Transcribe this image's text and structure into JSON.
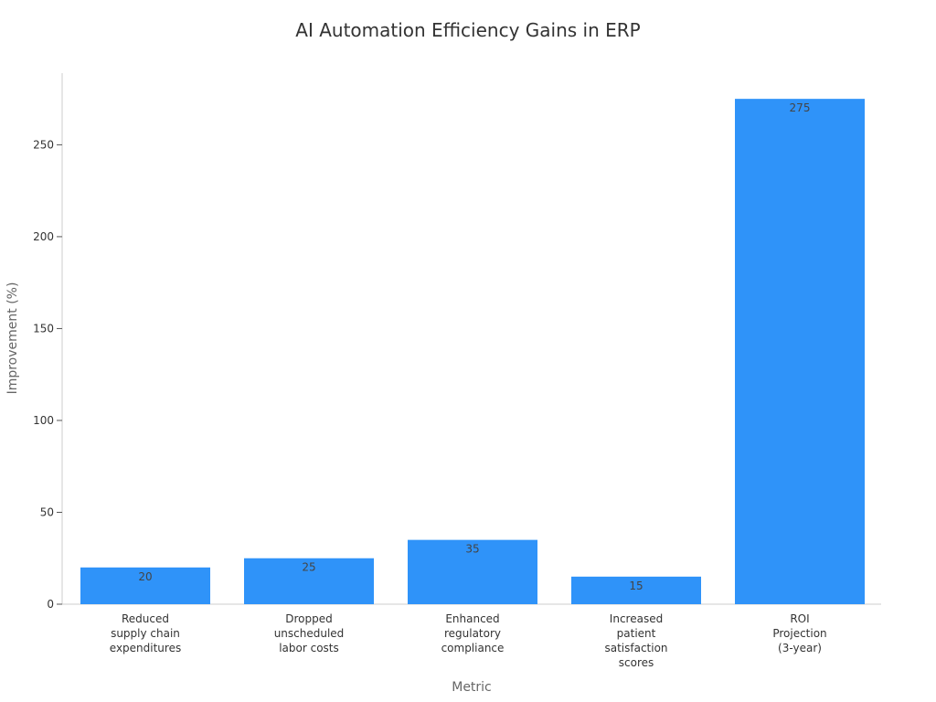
{
  "chart_data": {
    "type": "bar",
    "title": "AI Automation Efficiency Gains in ERP",
    "xlabel": "Metric",
    "ylabel": "Improvement (%)",
    "categories": [
      [
        "Reduced",
        "supply chain",
        "expenditures"
      ],
      [
        "Dropped",
        "unscheduled",
        "labor costs"
      ],
      [
        "Enhanced",
        "regulatory",
        "compliance"
      ],
      [
        "Increased",
        "patient",
        "satisfaction",
        "scores"
      ],
      [
        "ROI",
        "Projection",
        "(3-year)"
      ]
    ],
    "values": [
      20,
      25,
      35,
      15,
      275
    ],
    "data_labels": [
      "20",
      "25",
      "35",
      "15",
      "275"
    ],
    "yticks": [
      0,
      50,
      100,
      150,
      200,
      250
    ],
    "ylim": [
      0,
      289
    ],
    "bar_color": "#2F93F9",
    "grid": false,
    "legend": null
  }
}
